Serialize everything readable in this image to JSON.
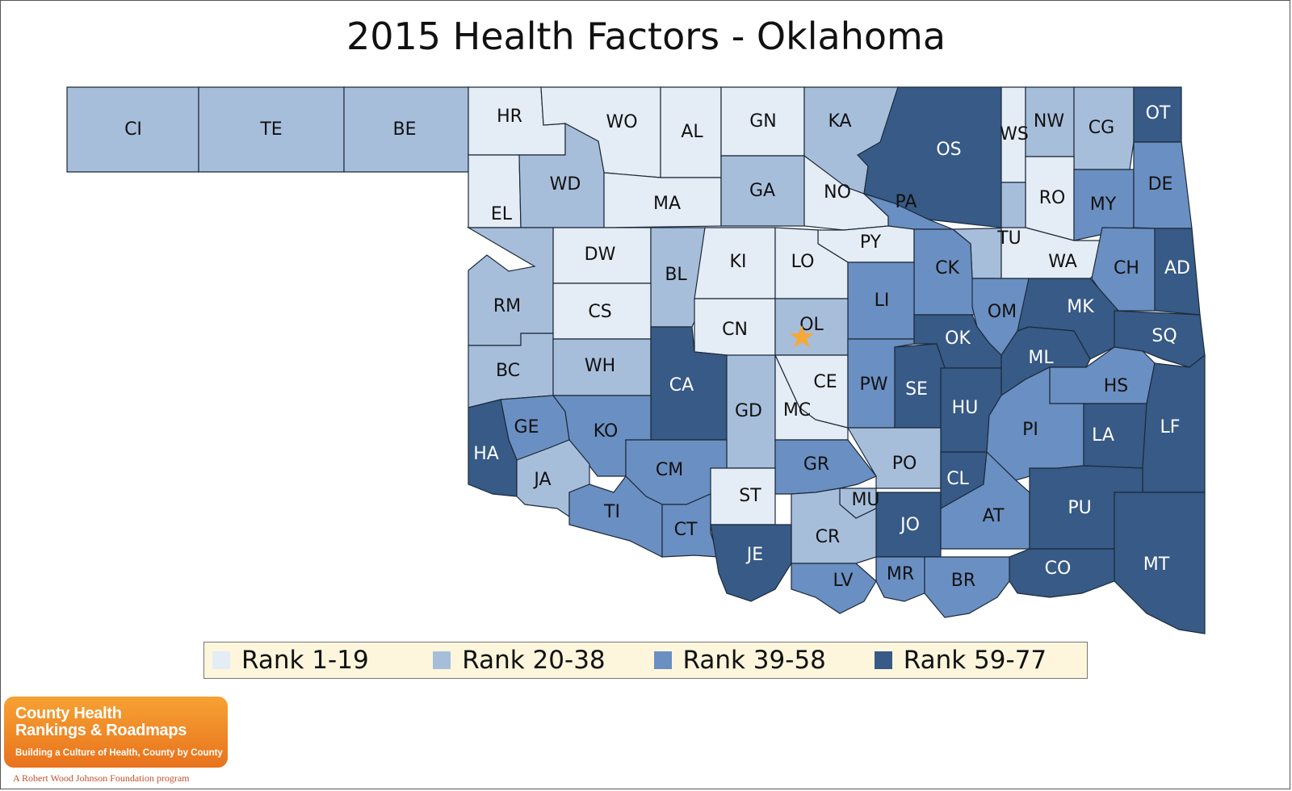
{
  "title": "2015 Health Factors - Oklahoma",
  "colors": {
    "rank_1_19": "#e4ecf5",
    "rank_20_38": "#a7bedb",
    "rank_39_58": "#6a8fc2",
    "rank_59_77": "#375a86",
    "star": "#f6a93b"
  },
  "legend": [
    {
      "label": "Rank 1-19",
      "tier": "rank_1_19"
    },
    {
      "label": "Rank 20-38",
      "tier": "rank_20_38"
    },
    {
      "label": "Rank 39-58",
      "tier": "rank_39_58"
    },
    {
      "label": "Rank 59-77",
      "tier": "rank_59_77"
    }
  ],
  "counties": [
    {
      "code": "CI",
      "tier": "rank_20_38"
    },
    {
      "code": "TE",
      "tier": "rank_20_38"
    },
    {
      "code": "BE",
      "tier": "rank_20_38"
    },
    {
      "code": "HR",
      "tier": "rank_1_19"
    },
    {
      "code": "WO",
      "tier": "rank_1_19"
    },
    {
      "code": "AL",
      "tier": "rank_1_19"
    },
    {
      "code": "GN",
      "tier": "rank_1_19"
    },
    {
      "code": "KA",
      "tier": "rank_20_38"
    },
    {
      "code": "OS",
      "tier": "rank_59_77"
    },
    {
      "code": "WS",
      "tier": "rank_1_19"
    },
    {
      "code": "NW",
      "tier": "rank_20_38"
    },
    {
      "code": "CG",
      "tier": "rank_20_38"
    },
    {
      "code": "OT",
      "tier": "rank_59_77"
    },
    {
      "code": "EL",
      "tier": "rank_1_19"
    },
    {
      "code": "WD",
      "tier": "rank_20_38"
    },
    {
      "code": "MA",
      "tier": "rank_1_19"
    },
    {
      "code": "GA",
      "tier": "rank_20_38"
    },
    {
      "code": "NO",
      "tier": "rank_1_19"
    },
    {
      "code": "PA",
      "tier": "rank_39_58"
    },
    {
      "code": "RO",
      "tier": "rank_1_19"
    },
    {
      "code": "MY",
      "tier": "rank_39_58"
    },
    {
      "code": "DE",
      "tier": "rank_39_58"
    },
    {
      "code": "DW",
      "tier": "rank_1_19"
    },
    {
      "code": "PY",
      "tier": "rank_1_19"
    },
    {
      "code": "TU",
      "tier": "rank_20_38"
    },
    {
      "code": "BL",
      "tier": "rank_20_38"
    },
    {
      "code": "KI",
      "tier": "rank_1_19"
    },
    {
      "code": "LO",
      "tier": "rank_1_19"
    },
    {
      "code": "CK",
      "tier": "rank_39_58"
    },
    {
      "code": "WA",
      "tier": "rank_1_19"
    },
    {
      "code": "CH",
      "tier": "rank_39_58"
    },
    {
      "code": "AD",
      "tier": "rank_59_77"
    },
    {
      "code": "RM",
      "tier": "rank_20_38"
    },
    {
      "code": "CS",
      "tier": "rank_1_19"
    },
    {
      "code": "LI",
      "tier": "rank_39_58"
    },
    {
      "code": "OM",
      "tier": "rank_39_58"
    },
    {
      "code": "MK",
      "tier": "rank_59_77"
    },
    {
      "code": "CN",
      "tier": "rank_1_19"
    },
    {
      "code": "OL",
      "tier": "rank_20_38"
    },
    {
      "code": "OK",
      "tier": "rank_59_77"
    },
    {
      "code": "SQ",
      "tier": "rank_59_77"
    },
    {
      "code": "BC",
      "tier": "rank_20_38"
    },
    {
      "code": "WH",
      "tier": "rank_20_38"
    },
    {
      "code": "CA",
      "tier": "rank_59_77"
    },
    {
      "code": "ML",
      "tier": "rank_59_77"
    },
    {
      "code": "CE",
      "tier": "rank_1_19"
    },
    {
      "code": "PW",
      "tier": "rank_39_58"
    },
    {
      "code": "SE",
      "tier": "rank_59_77"
    },
    {
      "code": "HS",
      "tier": "rank_39_58"
    },
    {
      "code": "HU",
      "tier": "rank_59_77"
    },
    {
      "code": "GD",
      "tier": "rank_20_38"
    },
    {
      "code": "MC",
      "tier": "rank_1_19"
    },
    {
      "code": "PI",
      "tier": "rank_39_58"
    },
    {
      "code": "GE",
      "tier": "rank_39_58"
    },
    {
      "code": "KO",
      "tier": "rank_39_58"
    },
    {
      "code": "LA",
      "tier": "rank_59_77"
    },
    {
      "code": "LF",
      "tier": "rank_59_77"
    },
    {
      "code": "HA",
      "tier": "rank_59_77"
    },
    {
      "code": "CM",
      "tier": "rank_39_58"
    },
    {
      "code": "PO",
      "tier": "rank_20_38"
    },
    {
      "code": "GR",
      "tier": "rank_39_58"
    },
    {
      "code": "JA",
      "tier": "rank_20_38"
    },
    {
      "code": "CL",
      "tier": "rank_59_77"
    },
    {
      "code": "ST",
      "tier": "rank_1_19"
    },
    {
      "code": "MU",
      "tier": "rank_20_38"
    },
    {
      "code": "TI",
      "tier": "rank_39_58"
    },
    {
      "code": "AT",
      "tier": "rank_39_58"
    },
    {
      "code": "PU",
      "tier": "rank_59_77"
    },
    {
      "code": "JO",
      "tier": "rank_59_77"
    },
    {
      "code": "CT",
      "tier": "rank_39_58"
    },
    {
      "code": "CR",
      "tier": "rank_20_38"
    },
    {
      "code": "MT",
      "tier": "rank_59_77"
    },
    {
      "code": "JE",
      "tier": "rank_59_77"
    },
    {
      "code": "MR",
      "tier": "rank_39_58"
    },
    {
      "code": "CO",
      "tier": "rank_59_77"
    },
    {
      "code": "BR",
      "tier": "rank_39_58"
    },
    {
      "code": "LV",
      "tier": "rank_39_58"
    }
  ],
  "logo": {
    "line1": "County Health",
    "line2": "Rankings & Roadmaps",
    "tagline": "Building a Culture of Health, County by County",
    "program": "A Robert Wood Johnson Foundation program"
  }
}
